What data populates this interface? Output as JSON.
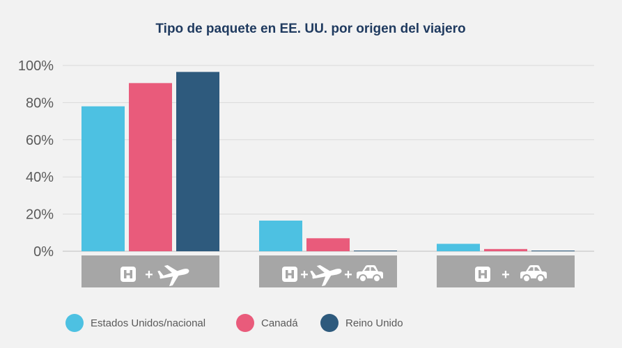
{
  "chart_data": {
    "type": "bar",
    "title": "Tipo de paquete en EE. UU. por origen del viajero",
    "categories": [
      "+",
      "++",
      "+"
    ],
    "category_icons": [
      [
        "hotel-icon",
        "plane-icon"
      ],
      [
        "hotel-icon",
        "plane-icon",
        "car-icon"
      ],
      [
        "hotel-icon",
        "car-icon"
      ]
    ],
    "series": [
      {
        "name": "Estados Unidos/nacional",
        "values": [
          78,
          16.5,
          4
        ],
        "color": "#4dc1e2"
      },
      {
        "name": "Canadá",
        "values": [
          90.5,
          7,
          1.2
        ],
        "color": "#e95b7b"
      },
      {
        "name": "Reino Unido",
        "values": [
          96.5,
          0.3,
          0.2
        ],
        "color": "#2e5a7d"
      }
    ],
    "yticks": [
      "0%",
      "20%",
      "40%",
      "60%",
      "80%",
      "100%"
    ],
    "ylim": [
      0,
      100
    ],
    "grid": true,
    "legend_position": "bottom-left",
    "category_box_color": "#a6a6a6",
    "gridline_color": "#d9d9d9"
  }
}
